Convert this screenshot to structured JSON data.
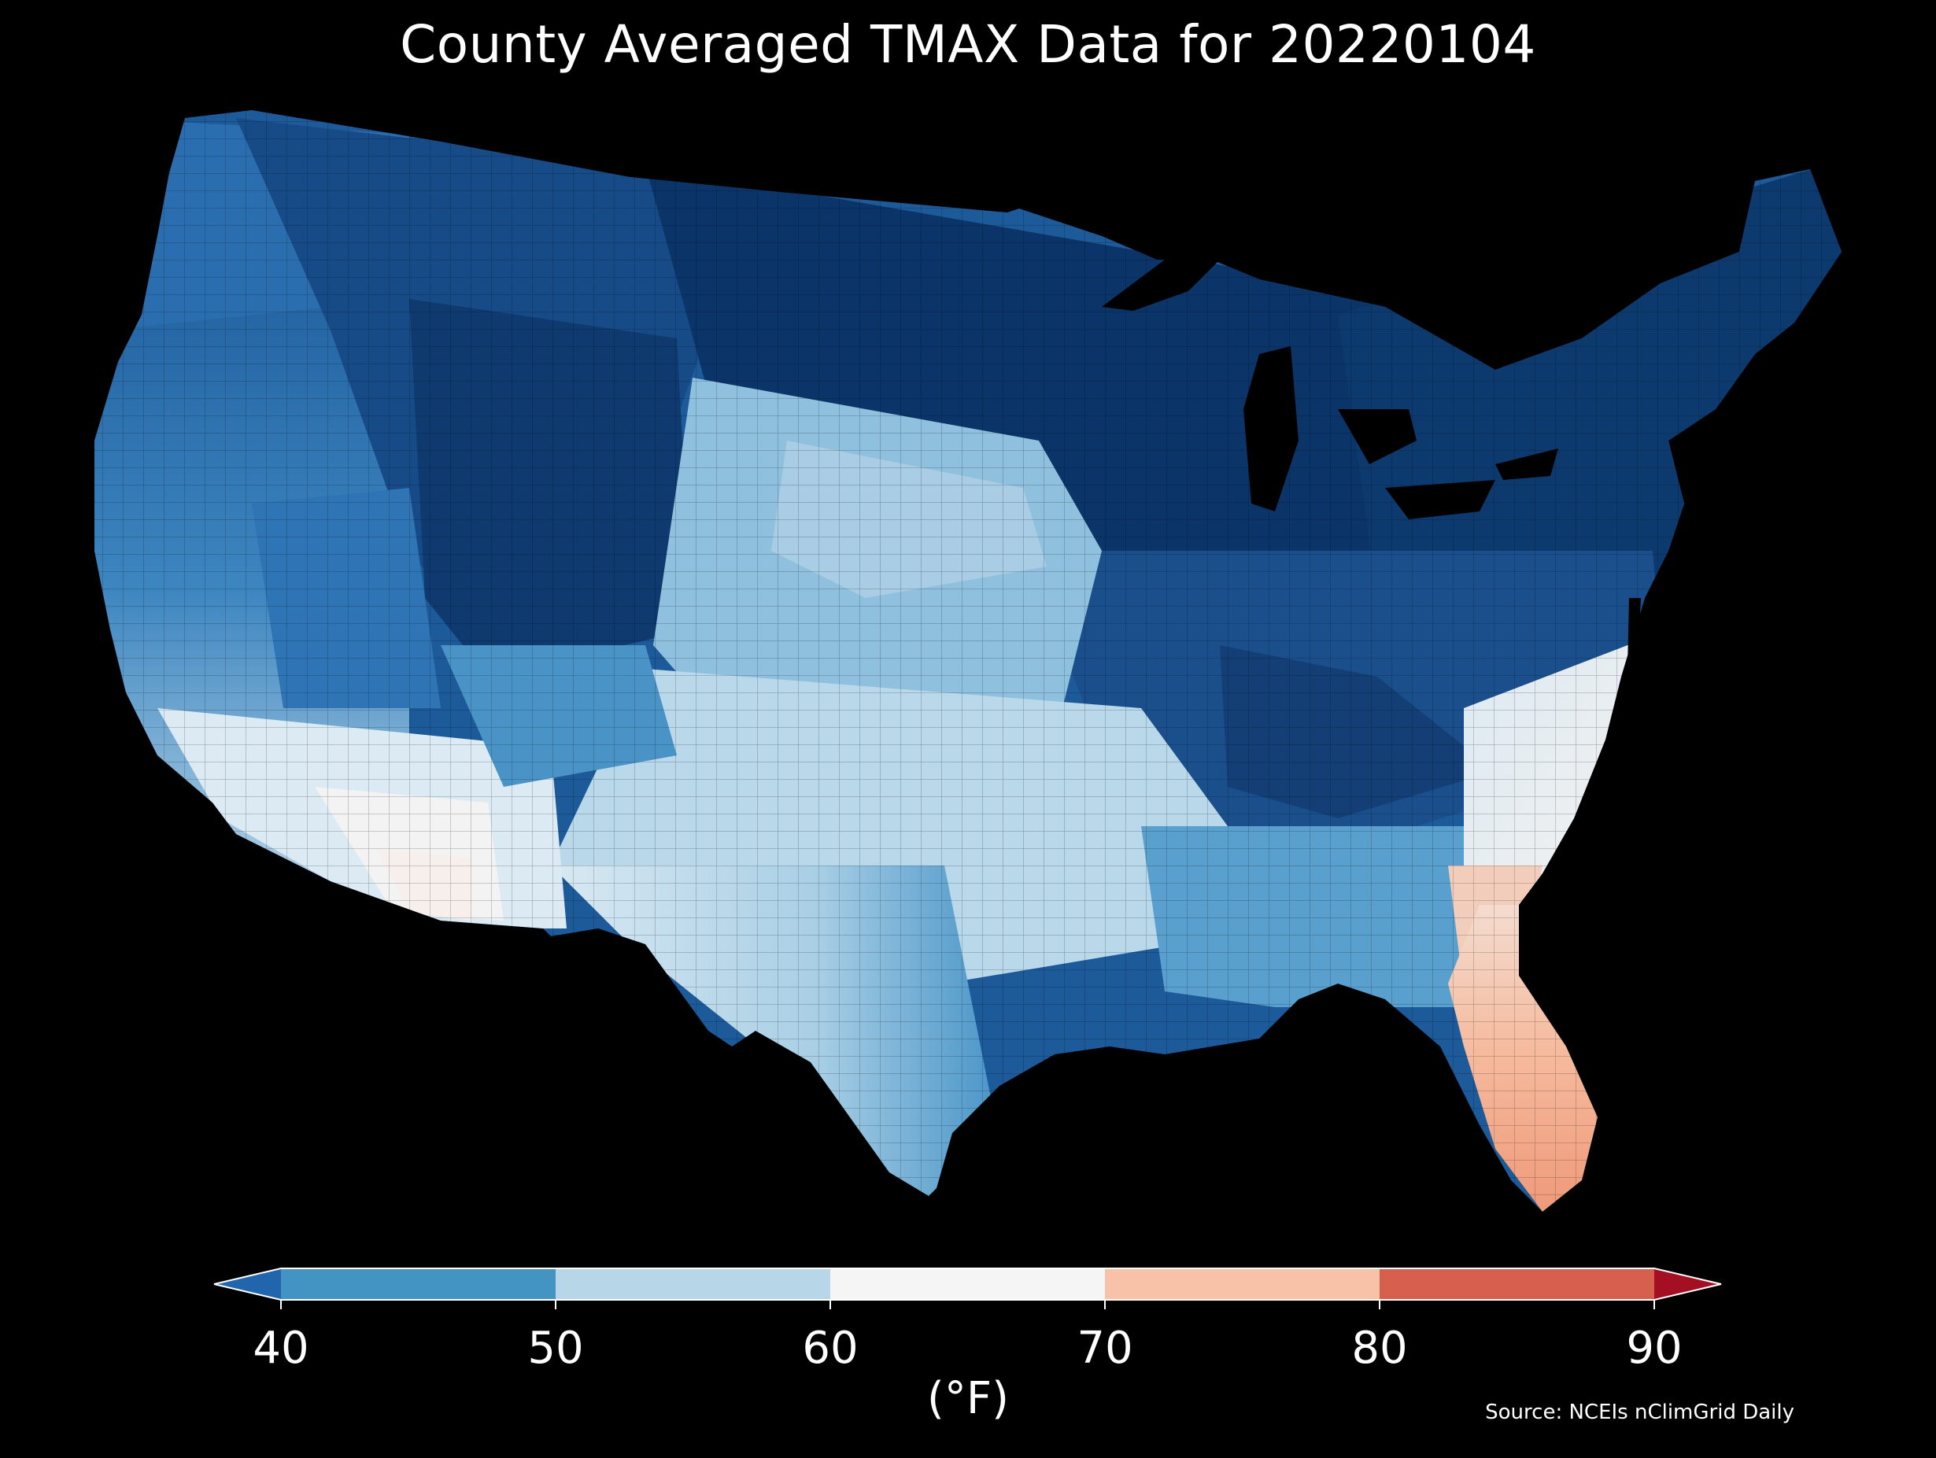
{
  "title": "County Averaged TMAX Data for 20220104",
  "colorbar": {
    "unit_label": "(°F)",
    "ticks": [
      "40",
      "50",
      "60",
      "70",
      "80",
      "90"
    ],
    "bins": [
      {
        "range": "<40",
        "color": "#2166ac"
      },
      {
        "range": "40-50",
        "color": "#4393c3"
      },
      {
        "range": "50-60",
        "color": "#b7d7e9"
      },
      {
        "range": "60-70",
        "color": "#f5f5f5"
      },
      {
        "range": "70-80",
        "color": "#f8c2a8"
      },
      {
        "range": "80-90",
        "color": "#d6604d"
      },
      {
        "range": ">90",
        "color": "#a50f24"
      }
    ]
  },
  "source": "Source: NCEIs nClimGrid Daily",
  "map": {
    "variable": "TMAX",
    "date": "20220104",
    "region": "Contiguous United States, county level",
    "regions_summary": [
      {
        "area": "Northern Plains / Great Lakes / Northeast",
        "value_range": "<40",
        "color": "#0d3a6e"
      },
      {
        "area": "Interior West / Rockies",
        "value_range": "<40 to 40-50",
        "color": "#2166ac"
      },
      {
        "area": "Ohio Valley / Appalachians",
        "value_range": "<40",
        "color": "#1a4f8c"
      },
      {
        "area": "Central & Southern Plains",
        "value_range": "50-60",
        "color": "#b7d7e9"
      },
      {
        "area": "South Texas / Desert Southwest",
        "value_range": "60-70",
        "color": "#e3eef5"
      },
      {
        "area": "Florida Peninsula",
        "value_range": "70-80",
        "color": "#f4a582"
      }
    ]
  }
}
